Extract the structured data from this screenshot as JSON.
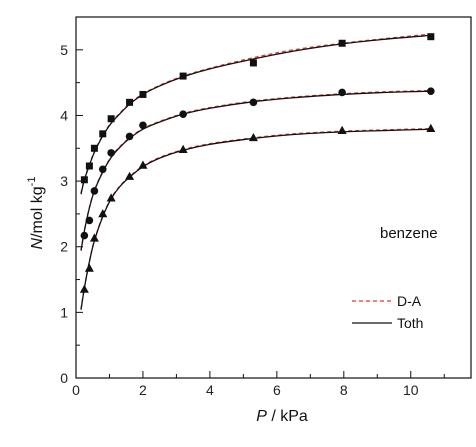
{
  "chart_data": {
    "type": "scatter",
    "title": "",
    "xlabel": {
      "symbol": "P",
      "unit": " / kPa"
    },
    "ylabel": {
      "symbol": "N",
      "unit": "/mol kg",
      "exponent": "-1"
    },
    "xlim": [
      0,
      11.8
    ],
    "ylim": [
      0,
      5.5
    ],
    "xticks": [
      0,
      2,
      4,
      6,
      8,
      10
    ],
    "xtick_labels": [
      "0",
      "2",
      "4",
      "6",
      "8",
      "10"
    ],
    "yticks": [
      0,
      1,
      2,
      3,
      4,
      5
    ],
    "ytick_labels": [
      "0",
      "1",
      "2",
      "3",
      "4",
      "5"
    ],
    "grid": false,
    "annotation": "benzene",
    "legend_position": "center-right",
    "series": [
      {
        "marker": "square",
        "x": [
          0.25,
          0.4,
          0.55,
          0.8,
          1.05,
          1.6,
          2.0,
          3.2,
          5.3,
          7.95,
          10.6
        ],
        "y": [
          3.02,
          3.23,
          3.5,
          3.72,
          3.95,
          4.2,
          4.32,
          4.6,
          4.8,
          5.1,
          5.2
        ]
      },
      {
        "marker": "circle",
        "x": [
          0.25,
          0.4,
          0.55,
          0.8,
          1.05,
          1.6,
          2.0,
          3.2,
          5.3,
          7.95,
          10.6
        ],
        "y": [
          2.17,
          2.4,
          2.85,
          3.18,
          3.43,
          3.68,
          3.85,
          4.02,
          4.2,
          4.35,
          4.37
        ]
      },
      {
        "marker": "triangle",
        "x": [
          0.25,
          0.4,
          0.55,
          0.8,
          1.05,
          1.6,
          2.0,
          3.2,
          5.3,
          7.95,
          10.6
        ],
        "y": [
          1.35,
          1.67,
          2.13,
          2.5,
          2.74,
          3.07,
          3.24,
          3.48,
          3.66,
          3.77,
          3.8
        ]
      }
    ],
    "fits": [
      {
        "name": "D-A",
        "color": "#e8382f",
        "dash": "dashed",
        "curves": [
          {
            "x": [
              0.15,
              0.25,
              0.4,
              0.55,
              0.8,
              1.05,
              1.3,
              1.6,
              2.0,
              2.5,
              3.2,
              4.0,
              5.3,
              6.5,
              7.95,
              9.2,
              10.6
            ],
            "y": [
              2.82,
              3.03,
              3.25,
              3.45,
              3.7,
              3.89,
              4.03,
              4.18,
              4.33,
              4.46,
              4.6,
              4.72,
              4.88,
              5.0,
              5.1,
              5.17,
              5.24
            ]
          },
          {
            "x": [
              0.15,
              0.25,
              0.4,
              0.55,
              0.8,
              1.05,
              1.3,
              1.6,
              2.0,
              2.5,
              3.2,
              4.0,
              5.3,
              6.5,
              7.95,
              9.2,
              10.6
            ],
            "y": [
              1.95,
              2.25,
              2.6,
              2.86,
              3.15,
              3.37,
              3.52,
              3.66,
              3.8,
              3.91,
              4.03,
              4.12,
              4.22,
              4.28,
              4.33,
              4.36,
              4.38
            ]
          },
          {
            "x": [
              0.15,
              0.25,
              0.4,
              0.55,
              0.8,
              1.05,
              1.3,
              1.6,
              2.0,
              2.5,
              3.2,
              4.0,
              5.3,
              6.5,
              7.95,
              9.2,
              10.6
            ],
            "y": [
              1.05,
              1.38,
              1.78,
              2.1,
              2.47,
              2.74,
              2.92,
              3.07,
              3.23,
              3.36,
              3.48,
              3.57,
              3.66,
              3.72,
              3.76,
              3.78,
              3.8
            ]
          }
        ]
      },
      {
        "name": "Toth",
        "color": "#111111",
        "dash": "solid",
        "curves": [
          {
            "x": [
              0.15,
              0.25,
              0.4,
              0.55,
              0.8,
              1.05,
              1.3,
              1.6,
              2.0,
              2.5,
              3.2,
              4.0,
              5.3,
              6.5,
              7.95,
              9.2,
              10.6
            ],
            "y": [
              2.8,
              3.02,
              3.24,
              3.44,
              3.69,
              3.88,
              4.02,
              4.17,
              4.32,
              4.45,
              4.59,
              4.71,
              4.86,
              4.98,
              5.09,
              5.16,
              5.22
            ]
          },
          {
            "x": [
              0.15,
              0.25,
              0.4,
              0.55,
              0.8,
              1.05,
              1.3,
              1.6,
              2.0,
              2.5,
              3.2,
              4.0,
              5.3,
              6.5,
              7.95,
              9.2,
              10.6
            ],
            "y": [
              1.94,
              2.24,
              2.59,
              2.85,
              3.14,
              3.36,
              3.51,
              3.65,
              3.79,
              3.9,
              4.02,
              4.11,
              4.21,
              4.27,
              4.32,
              4.35,
              4.37
            ]
          },
          {
            "x": [
              0.15,
              0.25,
              0.4,
              0.55,
              0.8,
              1.05,
              1.3,
              1.6,
              2.0,
              2.5,
              3.2,
              4.0,
              5.3,
              6.5,
              7.95,
              9.2,
              10.6
            ],
            "y": [
              1.04,
              1.37,
              1.77,
              2.09,
              2.46,
              2.73,
              2.91,
              3.06,
              3.22,
              3.35,
              3.47,
              3.56,
              3.65,
              3.71,
              3.75,
              3.77,
              3.79
            ]
          }
        ]
      }
    ]
  }
}
